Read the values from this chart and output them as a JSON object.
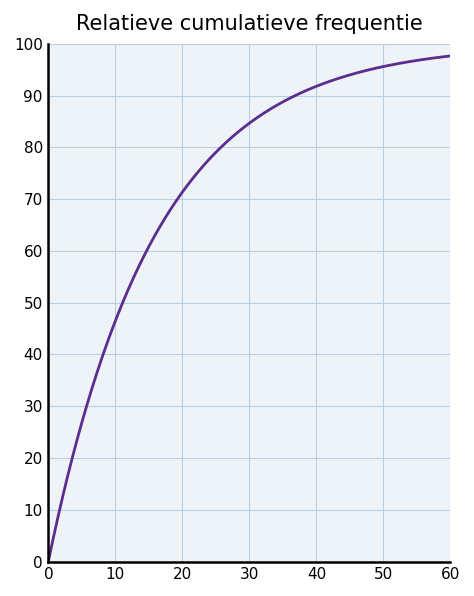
{
  "title": "Relatieve cumulatieve frequentie",
  "title_fontsize": 15,
  "title_fontweight": "normal",
  "xlim": [
    0,
    60
  ],
  "ylim": [
    0,
    100
  ],
  "xticks": [
    0,
    10,
    20,
    30,
    40,
    50,
    60
  ],
  "yticks": [
    0,
    10,
    20,
    30,
    40,
    50,
    60,
    70,
    80,
    90,
    100
  ],
  "line_color": "#5B2D8E",
  "line_width": 2.0,
  "grid_color": "#b8cfe0",
  "background_color": "#ffffff",
  "axes_background": "#eef3f8",
  "fig_background": "#ffffff",
  "curve_scale": 16.0
}
